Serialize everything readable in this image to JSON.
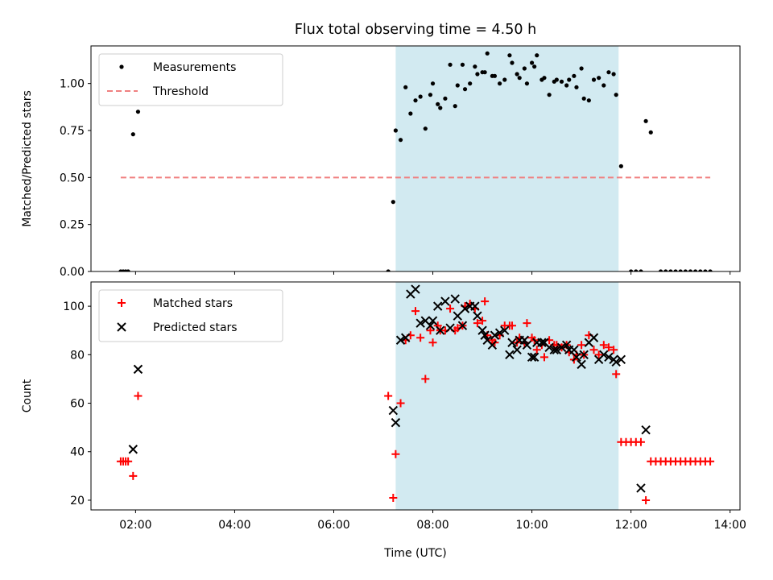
{
  "chart_data": {
    "type": "scatter",
    "title": "Flux total observing time = 4.50 h",
    "xlabel": "Time (UTC)",
    "x_ticks": [
      "02:00",
      "04:00",
      "06:00",
      "08:00",
      "10:00",
      "12:00",
      "14:00"
    ],
    "xlim": [
      "01:06",
      "14:12"
    ],
    "shaded_interval": {
      "start": "07:15",
      "end": "11:45",
      "color": "#add8e6"
    },
    "panels": [
      {
        "ylabel": "Matched/Predicted stars",
        "ylim": [
          0,
          1.2
        ],
        "y_ticks": [
          "0.00",
          "0.25",
          "0.50",
          "0.75",
          "1.00"
        ],
        "legend_position": "upper-left",
        "series": [
          {
            "name": "Measurements",
            "marker": "dot",
            "color": "#000000",
            "points": [
              [
                "01:42",
                0
              ],
              [
                "01:45",
                0
              ],
              [
                "01:48",
                0
              ],
              [
                "01:51",
                0
              ],
              [
                "01:57",
                0.73
              ],
              [
                "02:03",
                0.85
              ],
              [
                "07:06",
                0
              ],
              [
                "07:12",
                0.37
              ],
              [
                "07:15",
                0.75
              ],
              [
                "07:21",
                0.7
              ],
              [
                "07:27",
                0.98
              ],
              [
                "07:33",
                0.84
              ],
              [
                "07:39",
                0.91
              ],
              [
                "07:45",
                0.93
              ],
              [
                "07:51",
                0.76
              ],
              [
                "07:57",
                0.94
              ],
              [
                "08:00",
                1.0
              ],
              [
                "08:06",
                0.89
              ],
              [
                "08:09",
                0.87
              ],
              [
                "08:15",
                0.92
              ],
              [
                "08:21",
                1.1
              ],
              [
                "08:27",
                0.88
              ],
              [
                "08:30",
                0.99
              ],
              [
                "08:36",
                1.1
              ],
              [
                "08:39",
                0.97
              ],
              [
                "08:45",
                1.0
              ],
              [
                "08:51",
                1.09
              ],
              [
                "08:54",
                1.05
              ],
              [
                "09:00",
                1.06
              ],
              [
                "09:03",
                1.06
              ],
              [
                "09:06",
                1.16
              ],
              [
                "09:12",
                1.04
              ],
              [
                "09:15",
                1.04
              ],
              [
                "09:21",
                1.0
              ],
              [
                "09:27",
                1.02
              ],
              [
                "09:33",
                1.15
              ],
              [
                "09:36",
                1.11
              ],
              [
                "09:42",
                1.05
              ],
              [
                "09:45",
                1.03
              ],
              [
                "09:51",
                1.08
              ],
              [
                "09:54",
                1.0
              ],
              [
                "10:00",
                1.11
              ],
              [
                "10:03",
                1.09
              ],
              [
                "10:06",
                1.15
              ],
              [
                "10:12",
                1.02
              ],
              [
                "10:15",
                1.03
              ],
              [
                "10:21",
                0.94
              ],
              [
                "10:27",
                1.01
              ],
              [
                "10:30",
                1.02
              ],
              [
                "10:36",
                1.01
              ],
              [
                "10:42",
                0.99
              ],
              [
                "10:45",
                1.02
              ],
              [
                "10:51",
                1.04
              ],
              [
                "10:54",
                0.98
              ],
              [
                "11:00",
                1.08
              ],
              [
                "11:03",
                0.92
              ],
              [
                "11:09",
                0.91
              ],
              [
                "11:15",
                1.02
              ],
              [
                "11:21",
                1.03
              ],
              [
                "11:27",
                0.99
              ],
              [
                "11:33",
                1.06
              ],
              [
                "11:39",
                1.05
              ],
              [
                "11:42",
                0.94
              ],
              [
                "11:48",
                0.56
              ],
              [
                "12:00",
                0
              ],
              [
                "12:06",
                0
              ],
              [
                "12:12",
                0
              ],
              [
                "12:18",
                0.8
              ],
              [
                "12:24",
                0.74
              ],
              [
                "12:36",
                0
              ],
              [
                "12:42",
                0
              ],
              [
                "12:48",
                0
              ],
              [
                "12:54",
                0
              ],
              [
                "13:00",
                0
              ],
              [
                "13:06",
                0
              ],
              [
                "13:12",
                0
              ],
              [
                "13:18",
                0
              ],
              [
                "13:24",
                0
              ],
              [
                "13:30",
                0
              ],
              [
                "13:36",
                0
              ]
            ]
          },
          {
            "name": "Threshold",
            "marker": "dashed-line",
            "color": "#f08080",
            "points": [
              [
                "01:42",
                0.5
              ],
              [
                "13:36",
                0.5
              ]
            ]
          }
        ]
      },
      {
        "ylabel": "Count",
        "ylim": [
          16,
          110
        ],
        "y_ticks": [
          "20",
          "40",
          "60",
          "80",
          "100"
        ],
        "legend_position": "upper-left",
        "series": [
          {
            "name": "Matched stars",
            "marker": "plus",
            "color": "#ff0000",
            "points": [
              [
                "01:42",
                36
              ],
              [
                "01:45",
                36
              ],
              [
                "01:48",
                36
              ],
              [
                "01:51",
                36
              ],
              [
                "01:57",
                30
              ],
              [
                "02:03",
                63
              ],
              [
                "07:06",
                63
              ],
              [
                "07:12",
                21
              ],
              [
                "07:15",
                39
              ],
              [
                "07:21",
                60
              ],
              [
                "07:27",
                86
              ],
              [
                "07:33",
                88
              ],
              [
                "07:39",
                98
              ],
              [
                "07:45",
                87
              ],
              [
                "07:51",
                70
              ],
              [
                "07:57",
                90
              ],
              [
                "08:00",
                85
              ],
              [
                "08:06",
                92
              ],
              [
                "08:09",
                90
              ],
              [
                "08:15",
                90
              ],
              [
                "08:21",
                99
              ],
              [
                "08:27",
                90
              ],
              [
                "08:30",
                91
              ],
              [
                "08:36",
                92
              ],
              [
                "08:39",
                100
              ],
              [
                "08:45",
                101
              ],
              [
                "08:51",
                99
              ],
              [
                "08:54",
                93
              ],
              [
                "09:00",
                94
              ],
              [
                "09:03",
                102
              ],
              [
                "09:06",
                88
              ],
              [
                "09:12",
                86
              ],
              [
                "09:15",
                85
              ],
              [
                "09:21",
                88
              ],
              [
                "09:27",
                92
              ],
              [
                "09:33",
                92
              ],
              [
                "09:36",
                92
              ],
              [
                "09:42",
                85
              ],
              [
                "09:45",
                87
              ],
              [
                "09:51",
                85
              ],
              [
                "09:54",
                93
              ],
              [
                "10:00",
                87
              ],
              [
                "10:03",
                86
              ],
              [
                "10:06",
                82
              ],
              [
                "10:12",
                84
              ],
              [
                "10:15",
                79
              ],
              [
                "10:21",
                86
              ],
              [
                "10:27",
                84
              ],
              [
                "10:30",
                84
              ],
              [
                "10:36",
                83
              ],
              [
                "10:42",
                84
              ],
              [
                "10:45",
                81
              ],
              [
                "10:51",
                78
              ],
              [
                "10:54",
                80
              ],
              [
                "11:00",
                84
              ],
              [
                "11:03",
                80
              ],
              [
                "11:09",
                88
              ],
              [
                "11:15",
                82
              ],
              [
                "11:21",
                80
              ],
              [
                "11:27",
                84
              ],
              [
                "11:33",
                83
              ],
              [
                "11:39",
                82
              ],
              [
                "11:42",
                72
              ],
              [
                "11:48",
                44
              ],
              [
                "11:54",
                44
              ],
              [
                "12:00",
                44
              ],
              [
                "12:06",
                44
              ],
              [
                "12:12",
                44
              ],
              [
                "12:18",
                20
              ],
              [
                "12:24",
                36
              ],
              [
                "12:30",
                36
              ],
              [
                "12:36",
                36
              ],
              [
                "12:42",
                36
              ],
              [
                "12:48",
                36
              ],
              [
                "12:54",
                36
              ],
              [
                "13:00",
                36
              ],
              [
                "13:06",
                36
              ],
              [
                "13:12",
                36
              ],
              [
                "13:18",
                36
              ],
              [
                "13:24",
                36
              ],
              [
                "13:30",
                36
              ],
              [
                "13:36",
                36
              ]
            ]
          },
          {
            "name": "Predicted stars",
            "marker": "x",
            "color": "#000000",
            "points": [
              [
                "01:57",
                41
              ],
              [
                "02:03",
                74
              ],
              [
                "07:12",
                57
              ],
              [
                "07:15",
                52
              ],
              [
                "07:21",
                86
              ],
              [
                "07:27",
                87
              ],
              [
                "07:33",
                105
              ],
              [
                "07:39",
                107
              ],
              [
                "07:45",
                93
              ],
              [
                "07:51",
                94
              ],
              [
                "07:57",
                92
              ],
              [
                "08:00",
                94
              ],
              [
                "08:06",
                100
              ],
              [
                "08:09",
                90
              ],
              [
                "08:15",
                102
              ],
              [
                "08:21",
                91
              ],
              [
                "08:27",
                103
              ],
              [
                "08:30",
                96
              ],
              [
                "08:36",
                92
              ],
              [
                "08:39",
                99
              ],
              [
                "08:45",
                100
              ],
              [
                "08:51",
                100
              ],
              [
                "08:54",
                96
              ],
              [
                "09:00",
                90
              ],
              [
                "09:03",
                88
              ],
              [
                "09:06",
                86
              ],
              [
                "09:12",
                84
              ],
              [
                "09:15",
                88
              ],
              [
                "09:21",
                89
              ],
              [
                "09:27",
                90
              ],
              [
                "09:33",
                80
              ],
              [
                "09:36",
                85
              ],
              [
                "09:42",
                82
              ],
              [
                "09:45",
                86
              ],
              [
                "09:51",
                86
              ],
              [
                "09:54",
                84
              ],
              [
                "10:00",
                79
              ],
              [
                "10:03",
                79
              ],
              [
                "10:06",
                85
              ],
              [
                "10:12",
                85
              ],
              [
                "10:15",
                85
              ],
              [
                "10:21",
                83
              ],
              [
                "10:27",
                82
              ],
              [
                "10:30",
                82
              ],
              [
                "10:36",
                83
              ],
              [
                "10:42",
                84
              ],
              [
                "10:45",
                82
              ],
              [
                "10:51",
                82
              ],
              [
                "10:54",
                79
              ],
              [
                "11:00",
                76
              ],
              [
                "11:03",
                80
              ],
              [
                "11:09",
                85
              ],
              [
                "11:15",
                87
              ],
              [
                "11:21",
                78
              ],
              [
                "11:27",
                80
              ],
              [
                "11:33",
                79
              ],
              [
                "11:39",
                78
              ],
              [
                "11:42",
                77
              ],
              [
                "11:48",
                78
              ],
              [
                "12:12",
                25
              ],
              [
                "12:18",
                49
              ]
            ]
          }
        ]
      }
    ]
  }
}
